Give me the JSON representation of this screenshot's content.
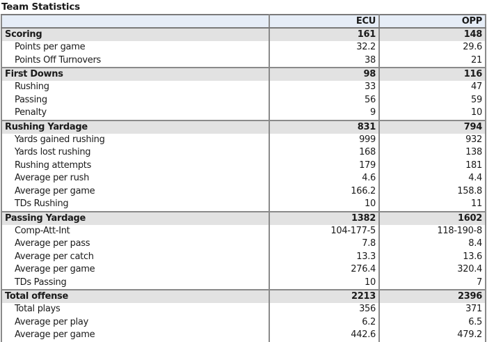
{
  "page_title": "Team Statistics",
  "table": {
    "columns": [
      "",
      "ECU",
      "OPP"
    ],
    "sections": [
      {
        "label": "Scoring",
        "ecu": "161",
        "opp": "148",
        "rows": [
          {
            "label": "Points per game",
            "ecu": "32.2",
            "opp": "29.6"
          },
          {
            "label": "Points Off Turnovers",
            "ecu": "38",
            "opp": "21"
          }
        ]
      },
      {
        "label": "First Downs",
        "ecu": "98",
        "opp": "116",
        "rows": [
          {
            "label": "Rushing",
            "ecu": "33",
            "opp": "47"
          },
          {
            "label": "Passing",
            "ecu": "56",
            "opp": "59"
          },
          {
            "label": "Penalty",
            "ecu": "9",
            "opp": "10"
          }
        ]
      },
      {
        "label": "Rushing Yardage",
        "ecu": "831",
        "opp": "794",
        "rows": [
          {
            "label": "Yards gained rushing",
            "ecu": "999",
            "opp": "932"
          },
          {
            "label": "Yards lost rushing",
            "ecu": "168",
            "opp": "138"
          },
          {
            "label": "Rushing attempts",
            "ecu": "179",
            "opp": "181"
          },
          {
            "label": "Average per rush",
            "ecu": "4.6",
            "opp": "4.4"
          },
          {
            "label": "Average per game",
            "ecu": "166.2",
            "opp": "158.8"
          },
          {
            "label": "TDs Rushing",
            "ecu": "10",
            "opp": "11"
          }
        ]
      },
      {
        "label": "Passing Yardage",
        "ecu": "1382",
        "opp": "1602",
        "rows": [
          {
            "label": "Comp-Att-Int",
            "ecu": "104-177-5",
            "opp": "118-190-8"
          },
          {
            "label": "Average per pass",
            "ecu": "7.8",
            "opp": "8.4"
          },
          {
            "label": "Average per catch",
            "ecu": "13.3",
            "opp": "13.6"
          },
          {
            "label": "Average per game",
            "ecu": "276.4",
            "opp": "320.4"
          },
          {
            "label": "TDs Passing",
            "ecu": "10",
            "opp": "7"
          }
        ]
      },
      {
        "label": "Total offense",
        "ecu": "2213",
        "opp": "2396",
        "rows": [
          {
            "label": "Total plays",
            "ecu": "356",
            "opp": "371"
          },
          {
            "label": "Average per play",
            "ecu": "6.2",
            "opp": "6.5"
          },
          {
            "label": "Average per game",
            "ecu": "442.6",
            "opp": "479.2"
          }
        ]
      }
    ]
  },
  "colors": {
    "header_bg": "#e6edf7",
    "section_bg": "#e2e2e2",
    "border": "#8a8a8a"
  }
}
